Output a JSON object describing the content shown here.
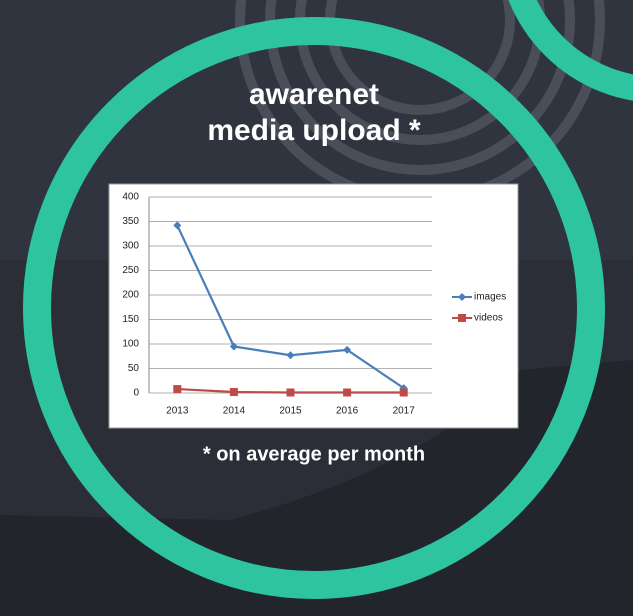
{
  "chart_data": {
    "type": "line",
    "title": "awarenet\nmedia upload *",
    "annotation": "* on average per month",
    "categories": [
      "2013",
      "2014",
      "2015",
      "2016",
      "2017"
    ],
    "series": [
      {
        "name": "images",
        "color": "#4a7ebb",
        "marker": "diamond",
        "values": [
          342,
          95,
          77,
          88,
          10
        ]
      },
      {
        "name": "videos",
        "color": "#be4b48",
        "marker": "square",
        "values": [
          8,
          2,
          1,
          1,
          1
        ]
      }
    ],
    "ylim": [
      0,
      400
    ],
    "yticks": [
      0,
      50,
      100,
      150,
      200,
      250,
      300,
      350,
      400
    ],
    "grid": true,
    "legend": "right"
  }
}
